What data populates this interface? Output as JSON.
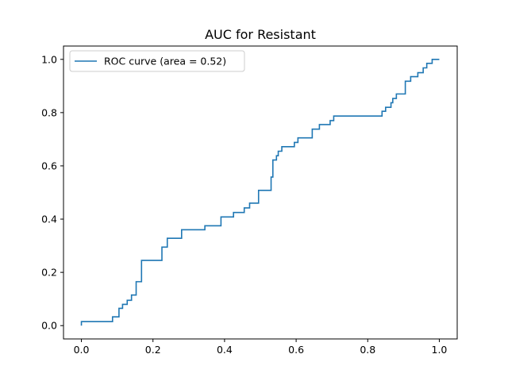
{
  "chart_data": {
    "type": "line",
    "title": "AUC for Resistant",
    "xlabel": "",
    "ylabel": "",
    "xlim": [
      -0.05,
      1.05
    ],
    "ylim": [
      -0.05,
      1.05
    ],
    "x_ticks": [
      "0.0",
      "0.2",
      "0.4",
      "0.6",
      "0.8",
      "1.0"
    ],
    "y_ticks": [
      "0.0",
      "0.2",
      "0.4",
      "0.6",
      "0.8",
      "1.0"
    ],
    "grid": false,
    "legend_position": "top-left",
    "series": [
      {
        "name": "ROC curve (area = 0.52)",
        "color": "#1f77b4",
        "step": true,
        "x": [
          0.0,
          0.0,
          0.01,
          0.01,
          0.087,
          0.087,
          0.105,
          0.105,
          0.115,
          0.115,
          0.128,
          0.128,
          0.14,
          0.14,
          0.153,
          0.153,
          0.168,
          0.168,
          0.225,
          0.225,
          0.24,
          0.24,
          0.28,
          0.28,
          0.345,
          0.345,
          0.39,
          0.39,
          0.425,
          0.425,
          0.455,
          0.455,
          0.47,
          0.47,
          0.495,
          0.495,
          0.53,
          0.53,
          0.535,
          0.535,
          0.545,
          0.545,
          0.55,
          0.55,
          0.56,
          0.56,
          0.595,
          0.595,
          0.605,
          0.605,
          0.645,
          0.645,
          0.665,
          0.665,
          0.695,
          0.695,
          0.705,
          0.705,
          0.84,
          0.84,
          0.85,
          0.85,
          0.865,
          0.865,
          0.87,
          0.87,
          0.88,
          0.88,
          0.905,
          0.905,
          0.92,
          0.92,
          0.94,
          0.94,
          0.955,
          0.955,
          0.965,
          0.965,
          0.98,
          0.98,
          1.0
        ],
        "y": [
          0.0,
          0.015,
          0.015,
          0.015,
          0.015,
          0.033,
          0.033,
          0.065,
          0.065,
          0.08,
          0.08,
          0.095,
          0.095,
          0.115,
          0.115,
          0.165,
          0.165,
          0.245,
          0.245,
          0.295,
          0.295,
          0.328,
          0.328,
          0.36,
          0.36,
          0.375,
          0.375,
          0.408,
          0.408,
          0.425,
          0.425,
          0.442,
          0.442,
          0.46,
          0.46,
          0.508,
          0.508,
          0.558,
          0.558,
          0.622,
          0.622,
          0.638,
          0.638,
          0.655,
          0.655,
          0.672,
          0.672,
          0.688,
          0.688,
          0.705,
          0.705,
          0.738,
          0.738,
          0.755,
          0.755,
          0.77,
          0.77,
          0.787,
          0.787,
          0.805,
          0.805,
          0.82,
          0.82,
          0.837,
          0.837,
          0.853,
          0.853,
          0.87,
          0.87,
          0.918,
          0.918,
          0.935,
          0.935,
          0.95,
          0.95,
          0.968,
          0.968,
          0.985,
          0.985,
          1.0,
          1.0
        ]
      }
    ]
  }
}
